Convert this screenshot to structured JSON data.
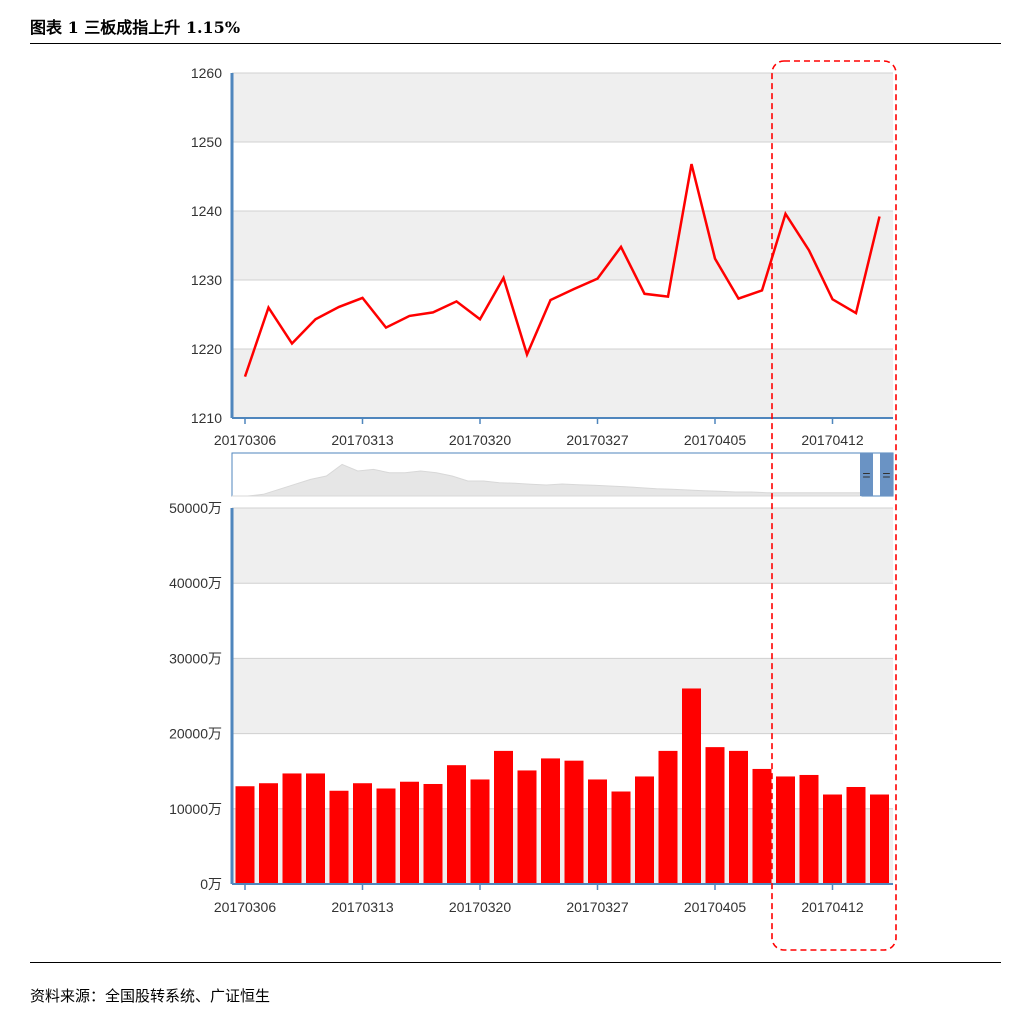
{
  "title": "图表 1 三板成指上升 1.15%",
  "source": "资料来源：全国股转系统、广证恒生",
  "colors": {
    "series": "#ff0000",
    "band": "#efefef",
    "axis": "#4f86bd",
    "grid": "#d0d0d0",
    "highlight": "#ff0000",
    "navigator_fill": "#e6e6e6",
    "navigator_handle": "#6a93c4"
  },
  "chart_data": [
    {
      "type": "line",
      "title": "",
      "xlabel": "",
      "ylabel": "",
      "ylim": [
        1210,
        1260
      ],
      "yticks": [
        "1260",
        "1250",
        "1240",
        "1230",
        "1220",
        "1210"
      ],
      "xticks": [
        "20170306",
        "20170313",
        "20170320",
        "20170327",
        "20170405",
        "20170412"
      ],
      "x_tick_positions": [
        0,
        5,
        10,
        15,
        20,
        25
      ],
      "values": [
        1216,
        1226,
        1220.8,
        1224.3,
        1226.1,
        1227.4,
        1223.1,
        1224.8,
        1225.3,
        1226.9,
        1224.3,
        1230.3,
        1219.2,
        1227.1,
        1228.7,
        1230.2,
        1234.8,
        1228,
        1227.6,
        1246.8,
        1233.1,
        1227.3,
        1228.5,
        1239.6,
        1234.3,
        1227.2,
        1225.2,
        1239.2
      ],
      "grid": true,
      "legend": "none"
    },
    {
      "type": "bar",
      "title": "",
      "xlabel": "",
      "ylabel": "",
      "ylim": [
        0,
        50000
      ],
      "yticks": [
        "50000万",
        "40000万",
        "30000万",
        "20000万",
        "10000万",
        "0万"
      ],
      "xticks": [
        "20170306",
        "20170313",
        "20170320",
        "20170327",
        "20170405",
        "20170412"
      ],
      "x_tick_positions": [
        0,
        5,
        10,
        15,
        20,
        25
      ],
      "values": [
        13000,
        13400,
        14700,
        14700,
        12400,
        13400,
        12700,
        13600,
        13300,
        15800,
        13900,
        17700,
        15100,
        16700,
        16400,
        13900,
        12300,
        14300,
        17700,
        26000,
        18200,
        17700,
        15300,
        14300,
        14500,
        11900,
        12900,
        11900
      ],
      "unit": "万",
      "grid": true,
      "legend": "none"
    }
  ]
}
